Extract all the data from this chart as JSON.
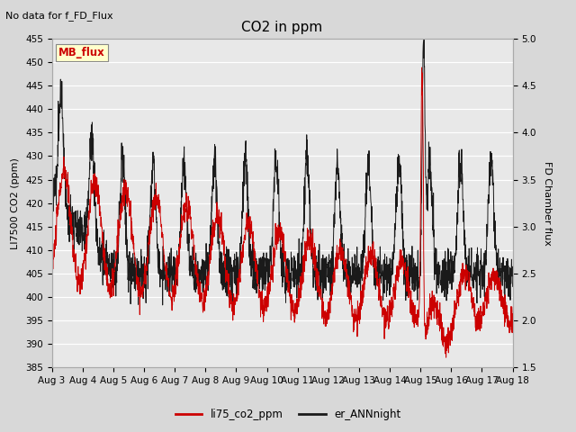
{
  "title": "CO2 in ppm",
  "top_left_text": "No data for f_FD_Flux",
  "legend_box_text": "MB_flux",
  "ylabel_left": "LI7500 CO2 (ppm)",
  "ylabel_right": "FD Chamber flux",
  "ylim_left": [
    385,
    455
  ],
  "ylim_right": [
    1.5,
    5.0
  ],
  "yticks_left": [
    385,
    390,
    395,
    400,
    405,
    410,
    415,
    420,
    425,
    430,
    435,
    440,
    445,
    450,
    455
  ],
  "yticks_right": [
    1.5,
    2.0,
    2.5,
    3.0,
    3.5,
    4.0,
    4.5,
    5.0
  ],
  "xtick_labels": [
    "Aug 3",
    "Aug 4",
    "Aug 5",
    "Aug 6",
    "Aug 7",
    "Aug 8",
    "Aug 9",
    "Aug 10",
    "Aug 11",
    "Aug 12",
    "Aug 13",
    "Aug 14",
    "Aug 15",
    "Aug 16",
    "Aug 17",
    "Aug 18"
  ],
  "line1_color": "#cc0000",
  "line2_color": "#1a1a1a",
  "line1_label": "li75_co2_ppm",
  "line2_label": "er_ANNnight",
  "fig_bg_color": "#d8d8d8",
  "plot_bg_color": "#e8e8e8",
  "legend_box_bg": "#ffffcc",
  "legend_box_edge": "#888888",
  "grid_color": "#ffffff"
}
